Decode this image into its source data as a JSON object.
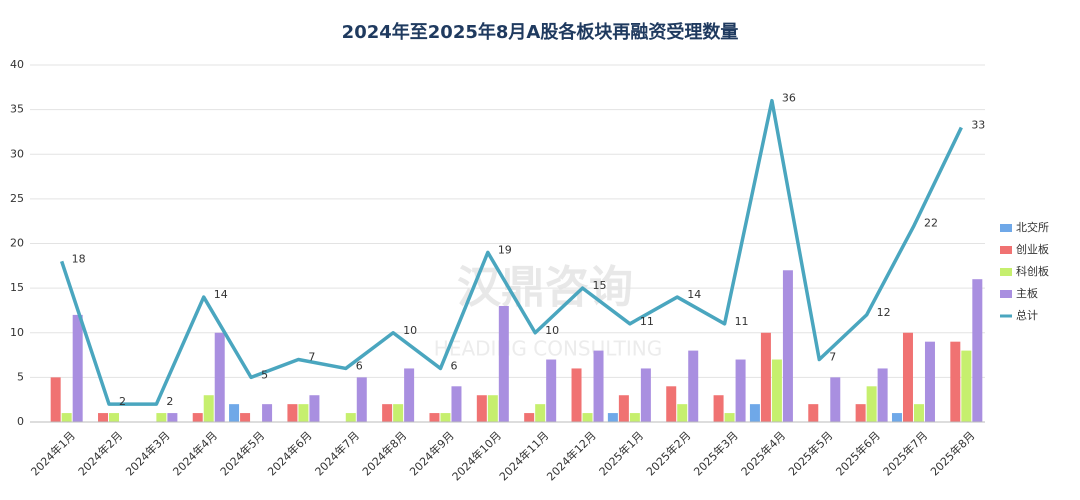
{
  "chart_data": {
    "type": "bar",
    "title": "2024年至2025年8月A股各板块再融资受理数量",
    "watermark": [
      "汉鼎咨询",
      "HEADING CONSULTING"
    ],
    "categories": [
      "2024年1月",
      "2024年2月",
      "2024年3月",
      "2024年4月",
      "2024年5月",
      "2024年6月",
      "2024年7月",
      "2024年8月",
      "2024年9月",
      "2024年10月",
      "2024年11月",
      "2024年12月",
      "2025年1月",
      "2025年2月",
      "2025年3月",
      "2025年4月",
      "2025年5月",
      "2025年6月",
      "2025年7月",
      "2025年8月"
    ],
    "series": [
      {
        "name": "北交所",
        "color": "#6fa8e8",
        "type": "bar",
        "values": [
          0,
          0,
          0,
          0,
          2,
          0,
          0,
          0,
          0,
          0,
          0,
          0,
          1,
          0,
          0,
          2,
          0,
          0,
          1,
          0
        ]
      },
      {
        "name": "创业板",
        "color": "#f07272",
        "type": "bar",
        "values": [
          5,
          1,
          0,
          1,
          1,
          2,
          0,
          2,
          1,
          3,
          1,
          6,
          3,
          4,
          3,
          10,
          2,
          2,
          10,
          9
        ]
      },
      {
        "name": "科创板",
        "color": "#c6ef6e",
        "type": "bar",
        "values": [
          1,
          1,
          1,
          3,
          0,
          2,
          1,
          2,
          1,
          3,
          2,
          1,
          1,
          2,
          1,
          7,
          0,
          4,
          2,
          8
        ]
      },
      {
        "name": "主板",
        "color": "#a98fe0",
        "type": "bar",
        "values": [
          12,
          0,
          1,
          10,
          2,
          3,
          5,
          6,
          4,
          13,
          7,
          8,
          6,
          8,
          7,
          17,
          5,
          6,
          9,
          16
        ]
      },
      {
        "name": "总计",
        "color": "#4aa6bf",
        "type": "line",
        "values": [
          18,
          2,
          2,
          14,
          5,
          7,
          6,
          10,
          6,
          19,
          10,
          15,
          11,
          14,
          11,
          36,
          7,
          12,
          22,
          33
        ]
      }
    ],
    "ylim": [
      0,
      40
    ],
    "yticks": [
      0,
      5,
      10,
      15,
      20,
      25,
      30,
      35,
      40
    ],
    "grid": true,
    "legend": "right"
  }
}
